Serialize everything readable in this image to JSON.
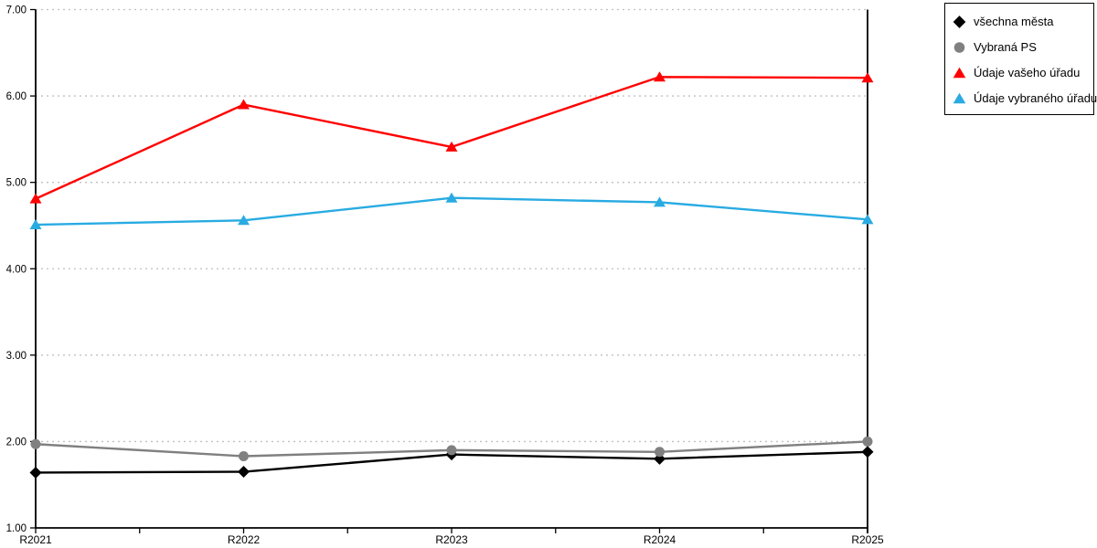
{
  "chart_data": {
    "type": "line",
    "categories": [
      "R2021",
      "R2022",
      "R2023",
      "R2024",
      "R2025"
    ],
    "series": [
      {
        "name": "všechna města",
        "marker": "diamond",
        "color": "#000000",
        "values": [
          1.64,
          1.65,
          1.85,
          1.8,
          1.88
        ]
      },
      {
        "name": "Vybraná PS",
        "marker": "circle",
        "color": "#808080",
        "values": [
          1.97,
          1.83,
          1.9,
          1.88,
          2.0
        ]
      },
      {
        "name": "Údaje vašeho úřadu",
        "marker": "triangle",
        "color": "#ff0000",
        "values": [
          4.81,
          5.9,
          5.41,
          6.22,
          6.21
        ]
      },
      {
        "name": "Údaje vybraného úřadu",
        "marker": "triangle",
        "color": "#29abe2",
        "values": [
          4.51,
          4.56,
          4.82,
          4.77,
          4.57
        ]
      }
    ],
    "title": "",
    "xlabel": "",
    "ylabel": "",
    "ylim": [
      1,
      7
    ],
    "ytick_step": 1,
    "ytick_labels": [
      "1.00",
      "2.00",
      "3.00",
      "4.00",
      "5.00",
      "6.00",
      "7.00"
    ],
    "grid": "horizontal-dotted",
    "legend_position": "top-right"
  },
  "colors": {
    "axis": "#000000",
    "grid": "#c0c0c0",
    "background": "#ffffff",
    "text": "#000000"
  }
}
